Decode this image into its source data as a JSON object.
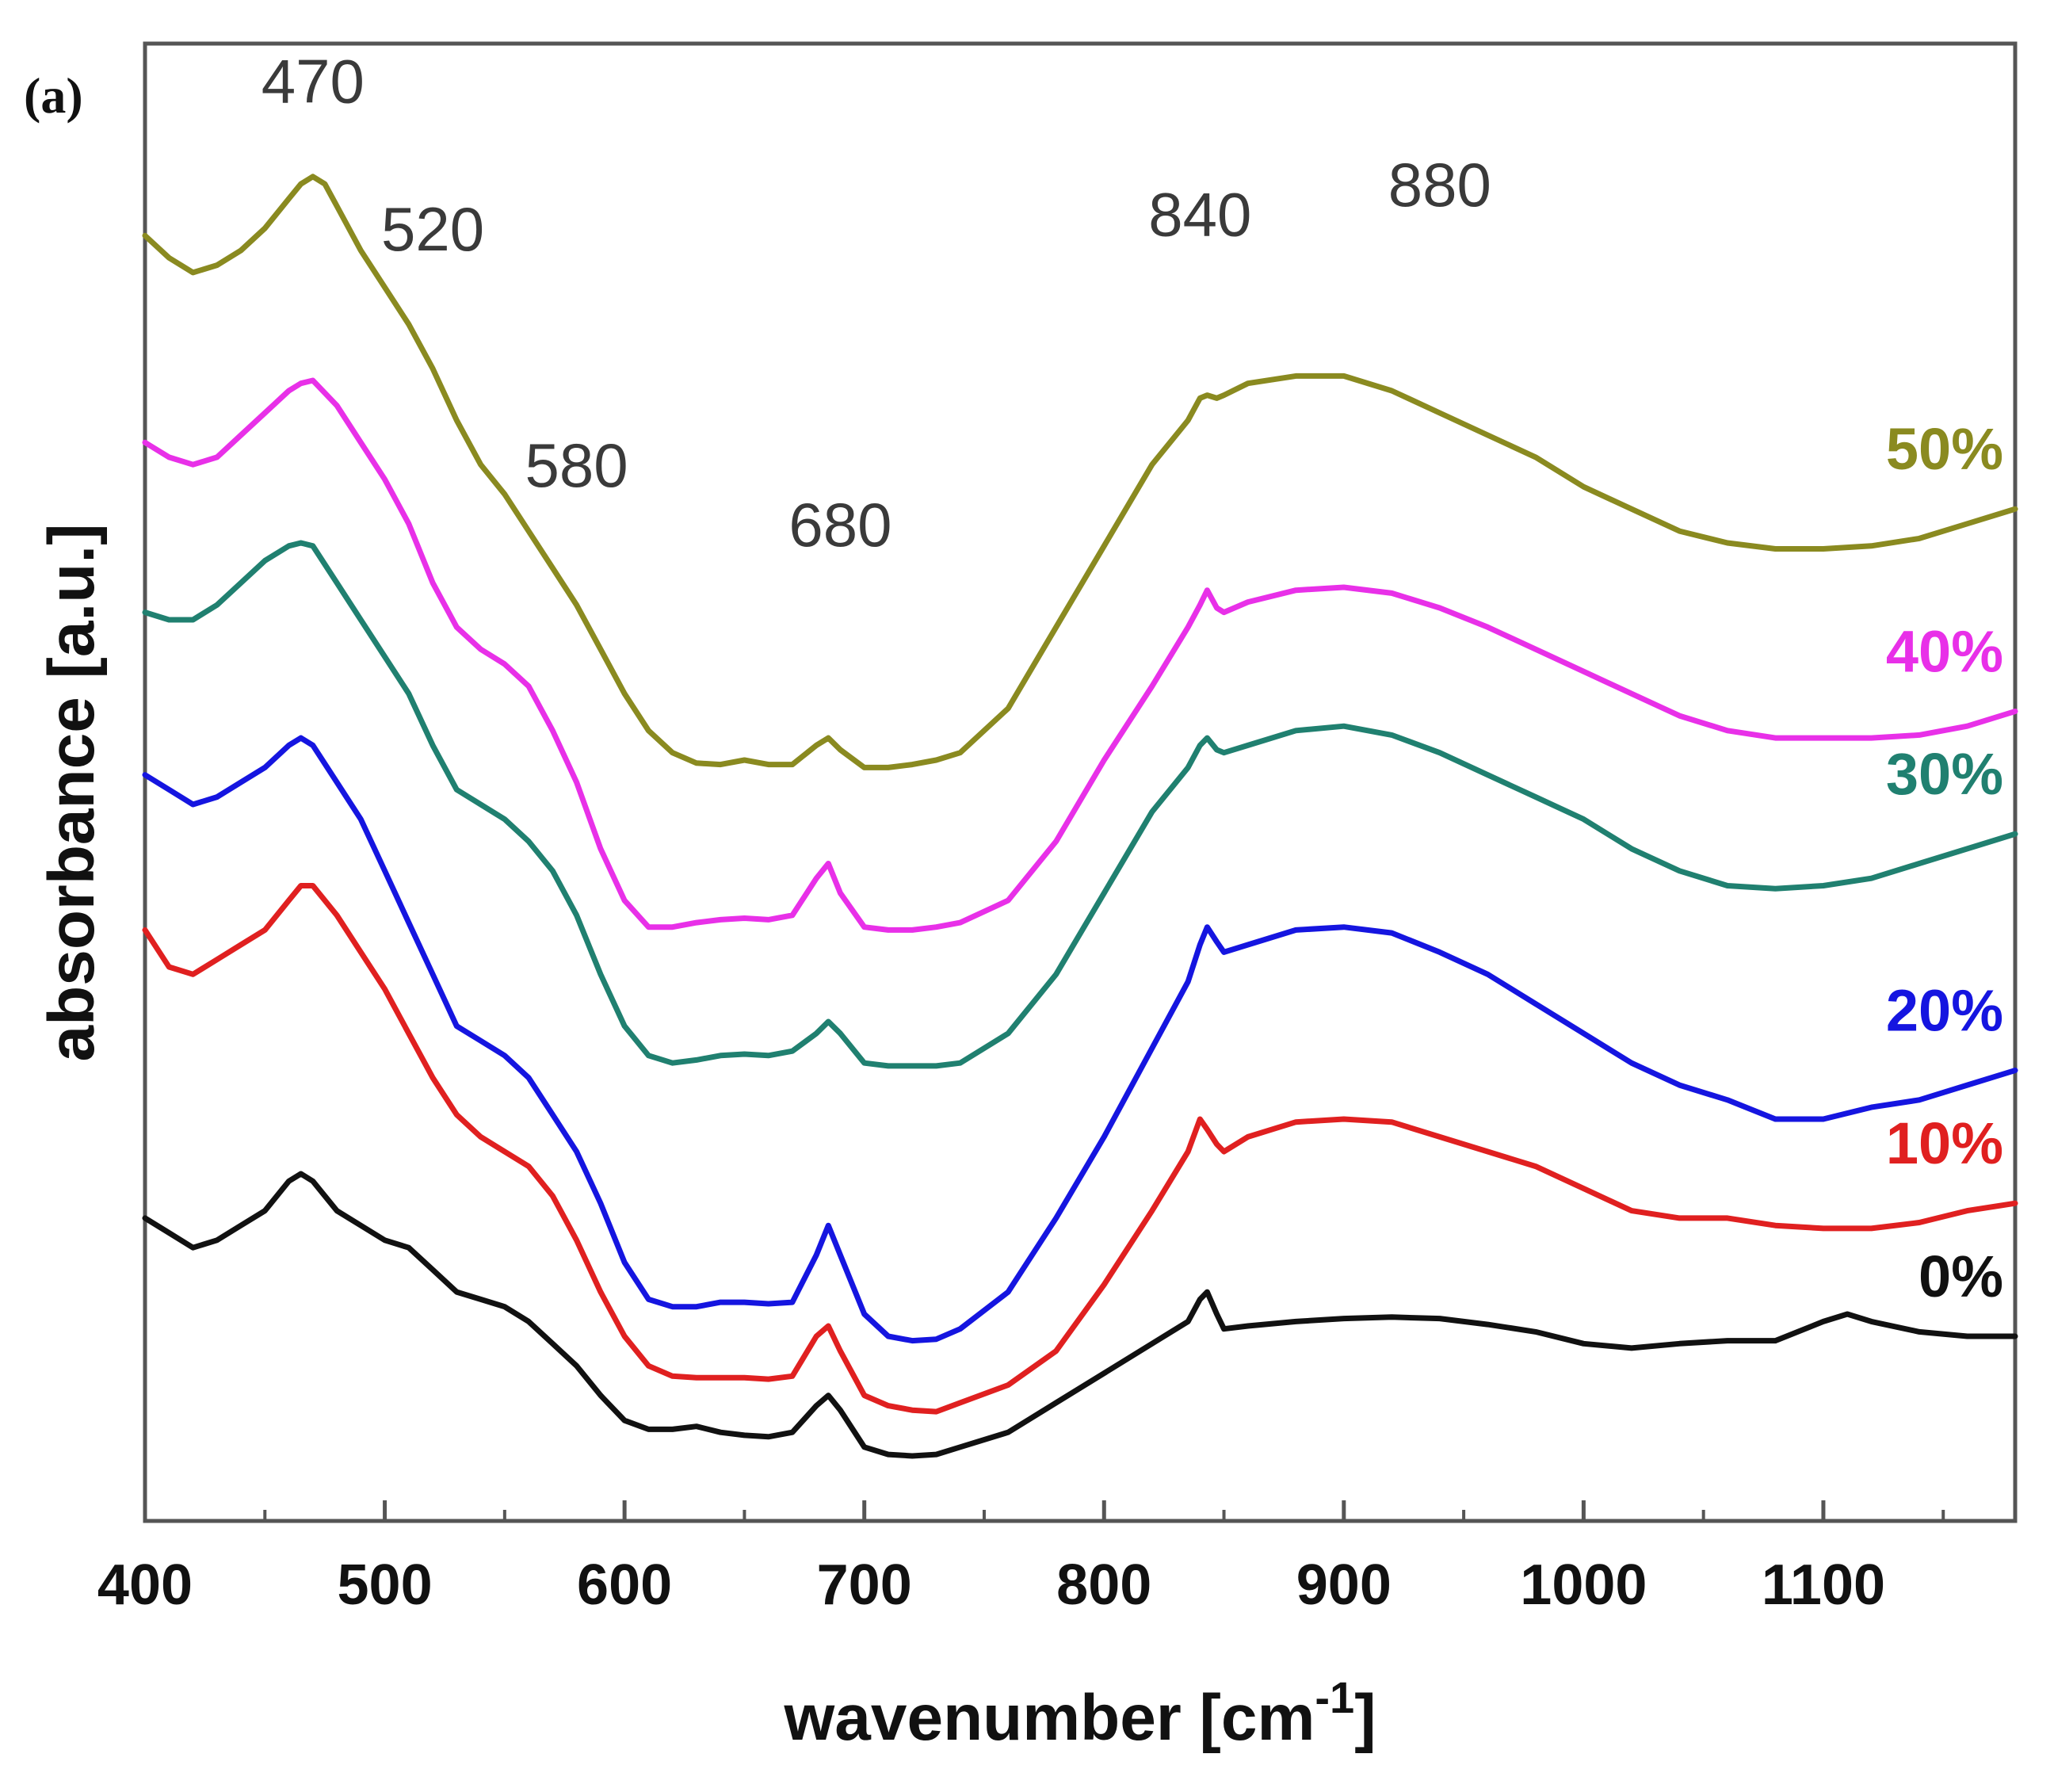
{
  "chart_data": {
    "type": "line",
    "panel_label": "(a)",
    "xlabel": "wavenumber [cm",
    "xlabel_superscript": "-1",
    "xlabel_suffix": "]",
    "ylabel": "absorbance [a.u.]",
    "xlim": [
      400,
      1180
    ],
    "ylim": [
      0,
      10
    ],
    "x_ticks": [
      400,
      500,
      600,
      700,
      800,
      900,
      1000,
      1100
    ],
    "x_tick_labels": [
      "400",
      "500",
      "600",
      "700",
      "800",
      "900",
      "1000",
      "1100"
    ],
    "y_ticks_visible": false,
    "grid": false,
    "peak_annotations": [
      {
        "label": "470",
        "x": 470,
        "y": 9.6
      },
      {
        "label": "520",
        "x": 520,
        "y": 8.6
      },
      {
        "label": "580",
        "x": 580,
        "y": 7.0
      },
      {
        "label": "680",
        "x": 690,
        "y": 6.6
      },
      {
        "label": "840",
        "x": 840,
        "y": 8.7
      },
      {
        "label": "880",
        "x": 940,
        "y": 8.9
      }
    ],
    "series": [
      {
        "name": "0%",
        "color": "#111111",
        "x": [
          400,
          410,
          420,
          430,
          440,
          450,
          460,
          465,
          470,
          480,
          490,
          500,
          510,
          520,
          530,
          540,
          550,
          560,
          570,
          580,
          590,
          600,
          610,
          620,
          630,
          640,
          650,
          660,
          670,
          680,
          685,
          690,
          700,
          710,
          720,
          730,
          740,
          760,
          780,
          800,
          820,
          835,
          840,
          843,
          847,
          850,
          860,
          880,
          900,
          920,
          940,
          960,
          980,
          1000,
          1020,
          1040,
          1060,
          1080,
          1100,
          1110,
          1120,
          1140,
          1160,
          1180
        ],
        "y": [
          2.05,
          1.95,
          1.85,
          1.9,
          2.0,
          2.1,
          2.3,
          2.35,
          2.3,
          2.1,
          2.0,
          1.9,
          1.85,
          1.7,
          1.55,
          1.5,
          1.45,
          1.35,
          1.2,
          1.05,
          0.85,
          0.68,
          0.62,
          0.62,
          0.64,
          0.6,
          0.58,
          0.57,
          0.6,
          0.78,
          0.85,
          0.75,
          0.5,
          0.45,
          0.44,
          0.45,
          0.5,
          0.6,
          0.8,
          1.0,
          1.2,
          1.35,
          1.5,
          1.55,
          1.4,
          1.3,
          1.32,
          1.35,
          1.37,
          1.38,
          1.37,
          1.33,
          1.28,
          1.2,
          1.17,
          1.2,
          1.22,
          1.22,
          1.35,
          1.4,
          1.35,
          1.28,
          1.25,
          1.25
        ]
      },
      {
        "name": "10%",
        "color": "#e02020",
        "x": [
          400,
          410,
          420,
          430,
          440,
          450,
          460,
          465,
          470,
          475,
          480,
          490,
          500,
          510,
          520,
          530,
          540,
          550,
          560,
          570,
          580,
          590,
          600,
          610,
          620,
          630,
          640,
          650,
          660,
          670,
          680,
          685,
          690,
          700,
          710,
          720,
          730,
          740,
          760,
          780,
          800,
          820,
          835,
          840,
          843,
          847,
          850,
          860,
          880,
          900,
          920,
          940,
          960,
          980,
          1000,
          1020,
          1040,
          1060,
          1080,
          1100,
          1120,
          1140,
          1160,
          1180
        ],
        "y": [
          4.0,
          3.75,
          3.7,
          3.8,
          3.9,
          4.0,
          4.2,
          4.3,
          4.3,
          4.2,
          4.1,
          3.85,
          3.6,
          3.3,
          3.0,
          2.75,
          2.6,
          2.5,
          2.4,
          2.2,
          1.9,
          1.55,
          1.25,
          1.05,
          0.98,
          0.97,
          0.97,
          0.97,
          0.96,
          0.98,
          1.25,
          1.32,
          1.15,
          0.85,
          0.78,
          0.75,
          0.74,
          0.8,
          0.92,
          1.15,
          1.6,
          2.1,
          2.5,
          2.72,
          2.65,
          2.55,
          2.5,
          2.6,
          2.7,
          2.72,
          2.7,
          2.6,
          2.5,
          2.4,
          2.25,
          2.1,
          2.05,
          2.05,
          2.0,
          1.98,
          1.98,
          2.02,
          2.1,
          2.15
        ]
      },
      {
        "name": "20%",
        "color": "#1515e0",
        "x": [
          400,
          410,
          420,
          430,
          440,
          450,
          460,
          465,
          470,
          480,
          490,
          500,
          510,
          520,
          530,
          540,
          550,
          560,
          570,
          580,
          590,
          600,
          610,
          620,
          630,
          640,
          650,
          660,
          670,
          680,
          685,
          690,
          700,
          710,
          720,
          730,
          740,
          760,
          780,
          800,
          820,
          835,
          840,
          843,
          847,
          850,
          860,
          880,
          900,
          920,
          940,
          960,
          980,
          1000,
          1020,
          1040,
          1060,
          1080,
          1100,
          1120,
          1140,
          1160,
          1180
        ],
        "y": [
          5.05,
          4.95,
          4.85,
          4.9,
          5.0,
          5.1,
          5.25,
          5.3,
          5.25,
          5.0,
          4.75,
          4.4,
          4.05,
          3.7,
          3.35,
          3.25,
          3.15,
          3.0,
          2.75,
          2.5,
          2.15,
          1.75,
          1.5,
          1.45,
          1.45,
          1.48,
          1.48,
          1.47,
          1.48,
          1.8,
          2.0,
          1.8,
          1.4,
          1.25,
          1.22,
          1.23,
          1.3,
          1.55,
          2.05,
          2.6,
          3.2,
          3.65,
          3.9,
          4.02,
          3.92,
          3.85,
          3.9,
          4.0,
          4.02,
          3.98,
          3.85,
          3.7,
          3.5,
          3.3,
          3.1,
          2.95,
          2.85,
          2.72,
          2.72,
          2.8,
          2.85,
          2.95,
          3.05
        ]
      },
      {
        "name": "30%",
        "color": "#208070",
        "x": [
          400,
          410,
          420,
          430,
          440,
          450,
          460,
          465,
          470,
          480,
          490,
          500,
          510,
          520,
          530,
          540,
          550,
          560,
          570,
          580,
          590,
          600,
          610,
          620,
          630,
          640,
          650,
          660,
          670,
          680,
          685,
          690,
          700,
          710,
          720,
          730,
          740,
          760,
          780,
          800,
          820,
          835,
          840,
          843,
          847,
          850,
          860,
          880,
          900,
          920,
          940,
          960,
          980,
          1000,
          1020,
          1040,
          1060,
          1080,
          1100,
          1120,
          1140,
          1160,
          1180
        ],
        "y": [
          6.15,
          6.1,
          6.1,
          6.2,
          6.35,
          6.5,
          6.6,
          6.62,
          6.6,
          6.35,
          6.1,
          5.85,
          5.6,
          5.25,
          4.95,
          4.85,
          4.75,
          4.6,
          4.4,
          4.1,
          3.7,
          3.35,
          3.15,
          3.1,
          3.12,
          3.15,
          3.16,
          3.15,
          3.18,
          3.3,
          3.38,
          3.3,
          3.1,
          3.08,
          3.08,
          3.08,
          3.1,
          3.3,
          3.7,
          4.25,
          4.8,
          5.1,
          5.25,
          5.3,
          5.22,
          5.2,
          5.25,
          5.35,
          5.38,
          5.32,
          5.2,
          5.05,
          4.9,
          4.75,
          4.55,
          4.4,
          4.3,
          4.28,
          4.3,
          4.35,
          4.45,
          4.55,
          4.65
        ]
      },
      {
        "name": "40%",
        "color": "#e830e8",
        "x": [
          400,
          410,
          420,
          430,
          440,
          450,
          460,
          465,
          470,
          480,
          490,
          500,
          510,
          520,
          530,
          540,
          550,
          560,
          570,
          580,
          590,
          600,
          610,
          620,
          630,
          640,
          650,
          660,
          670,
          680,
          685,
          690,
          700,
          710,
          720,
          730,
          740,
          760,
          780,
          800,
          820,
          835,
          840,
          843,
          847,
          850,
          860,
          880,
          900,
          920,
          940,
          960,
          980,
          1000,
          1020,
          1040,
          1060,
          1080,
          1100,
          1120,
          1140,
          1160,
          1180
        ],
        "y": [
          7.3,
          7.2,
          7.15,
          7.2,
          7.35,
          7.5,
          7.65,
          7.7,
          7.72,
          7.55,
          7.3,
          7.05,
          6.75,
          6.35,
          6.05,
          5.9,
          5.8,
          5.65,
          5.35,
          5.0,
          4.55,
          4.2,
          4.02,
          4.02,
          4.05,
          4.07,
          4.08,
          4.07,
          4.1,
          4.35,
          4.45,
          4.25,
          4.02,
          4.0,
          4.0,
          4.02,
          4.05,
          4.2,
          4.6,
          5.15,
          5.65,
          6.05,
          6.2,
          6.3,
          6.18,
          6.15,
          6.22,
          6.3,
          6.32,
          6.28,
          6.18,
          6.05,
          5.9,
          5.75,
          5.6,
          5.45,
          5.35,
          5.3,
          5.3,
          5.3,
          5.32,
          5.38,
          5.48
        ]
      },
      {
        "name": "50%",
        "color": "#8a8a20",
        "x": [
          400,
          410,
          420,
          430,
          440,
          450,
          460,
          465,
          470,
          475,
          480,
          490,
          500,
          510,
          520,
          530,
          540,
          550,
          560,
          570,
          580,
          590,
          600,
          610,
          620,
          630,
          640,
          650,
          660,
          670,
          680,
          685,
          690,
          700,
          710,
          720,
          730,
          740,
          760,
          780,
          800,
          820,
          835,
          840,
          843,
          847,
          850,
          860,
          880,
          900,
          920,
          940,
          960,
          980,
          1000,
          1020,
          1040,
          1060,
          1080,
          1100,
          1120,
          1140,
          1160,
          1180
        ],
        "y": [
          8.7,
          8.55,
          8.45,
          8.5,
          8.6,
          8.75,
          8.95,
          9.05,
          9.1,
          9.05,
          8.9,
          8.6,
          8.35,
          8.1,
          7.8,
          7.45,
          7.15,
          6.95,
          6.7,
          6.45,
          6.2,
          5.9,
          5.6,
          5.35,
          5.2,
          5.13,
          5.12,
          5.15,
          5.12,
          5.12,
          5.25,
          5.3,
          5.22,
          5.1,
          5.1,
          5.12,
          5.15,
          5.2,
          5.5,
          6.05,
          6.6,
          7.15,
          7.45,
          7.6,
          7.62,
          7.6,
          7.62,
          7.7,
          7.75,
          7.75,
          7.65,
          7.5,
          7.35,
          7.2,
          7.0,
          6.85,
          6.7,
          6.62,
          6.58,
          6.58,
          6.6,
          6.65,
          6.75,
          6.85
        ]
      }
    ]
  }
}
